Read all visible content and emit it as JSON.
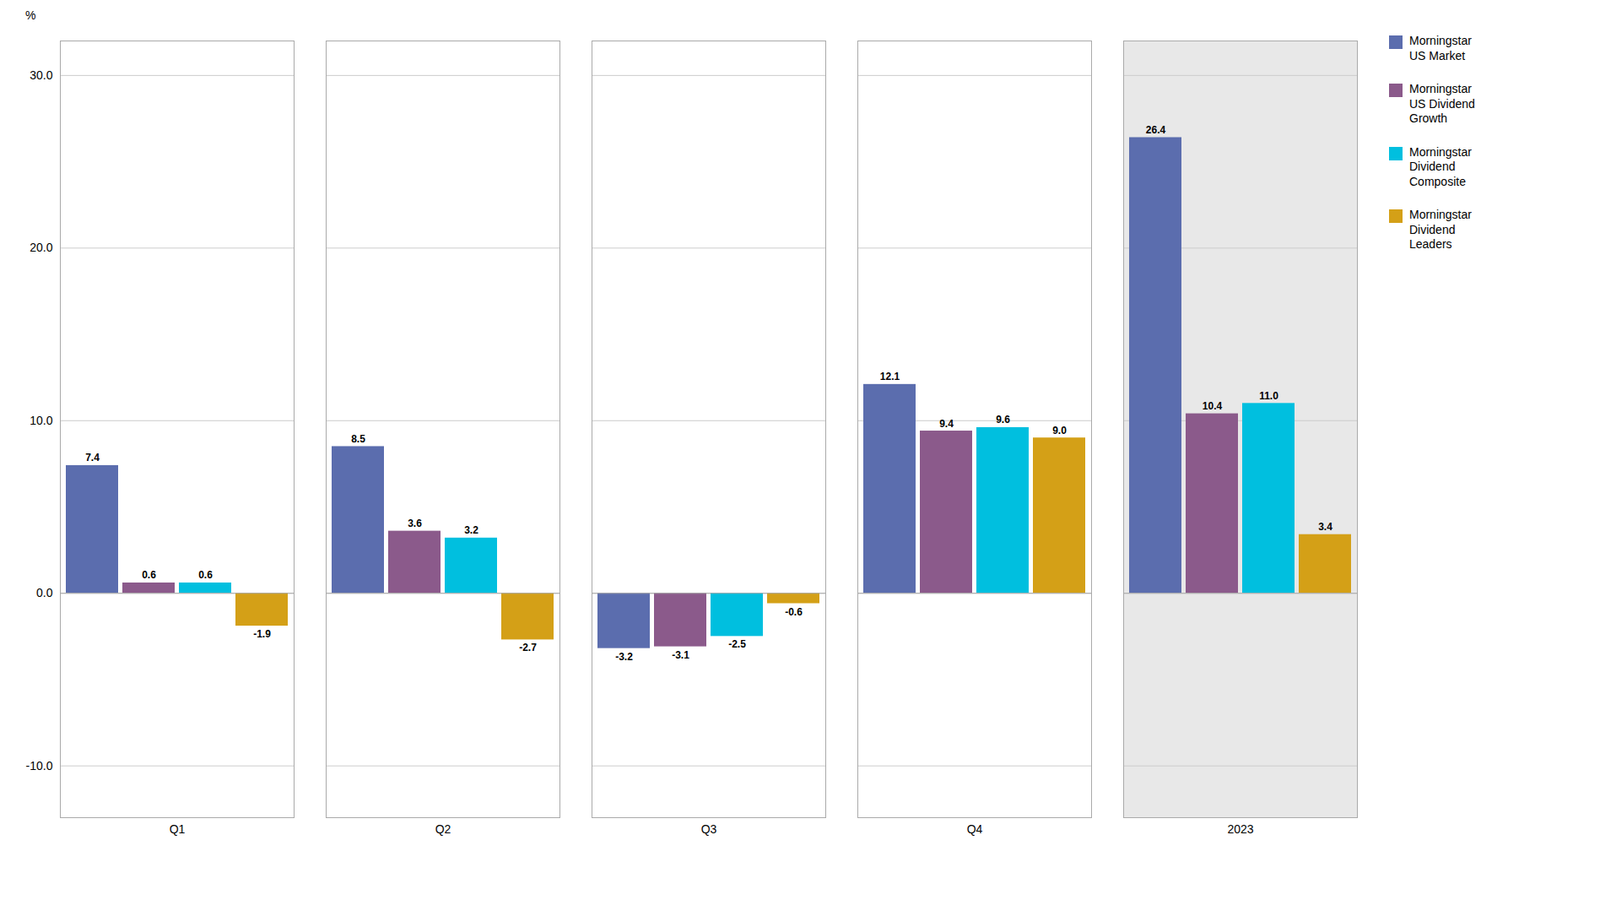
{
  "chart_data": {
    "type": "bar",
    "ylabel": "%",
    "categories": [
      "Q1",
      "Q2",
      "Q3",
      "Q4",
      "2023"
    ],
    "series": [
      {
        "name": "Morningstar\nUS Market",
        "color": "#5B6DAE",
        "values": [
          7.4,
          8.5,
          -3.2,
          12.1,
          26.4
        ]
      },
      {
        "name": "Morningstar\nUS Dividend\nGrowth",
        "color": "#8B5A8B",
        "values": [
          0.6,
          3.6,
          -3.1,
          9.4,
          10.4
        ]
      },
      {
        "name": "Morningstar\nDividend\nComposite",
        "color": "#00BFDF",
        "values": [
          0.6,
          3.2,
          -2.5,
          9.6,
          11.0
        ],
        "value_labels": [
          "0.6",
          "3.2",
          "-2.5",
          "9.6",
          "11.0"
        ]
      },
      {
        "name": "Morningstar\nDividend\nLeaders",
        "color": "#D4A017",
        "values": [
          -1.9,
          -2.7,
          -0.6,
          9.0,
          3.4
        ],
        "value_labels": [
          "-1.9",
          "-2.7",
          "-0.6",
          "9.0",
          "3.4"
        ]
      }
    ],
    "ylim": [
      -13,
      32
    ],
    "yticks": [
      {
        "value": -10,
        "label": "-10.0"
      },
      {
        "value": 0,
        "label": "0.0"
      },
      {
        "value": 10,
        "label": "10.0"
      },
      {
        "value": 20,
        "label": "20.0"
      },
      {
        "value": 30,
        "label": "30.0"
      }
    ],
    "grid": true,
    "data_labels": true,
    "legend": "right"
  }
}
